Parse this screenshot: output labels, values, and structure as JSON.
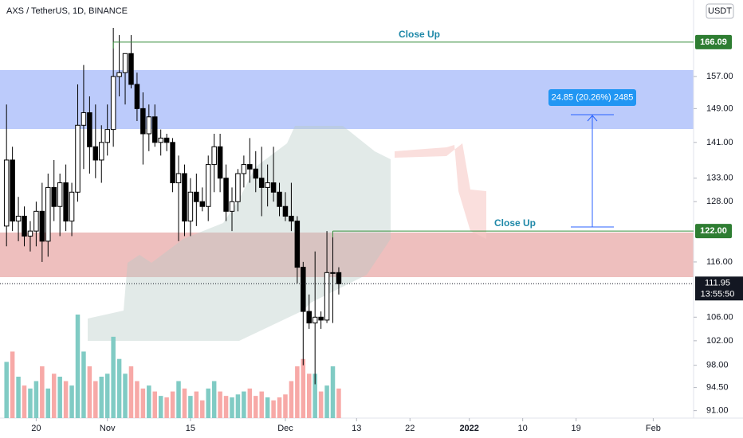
{
  "chart_data": {
    "type": "candlestick",
    "title": "AXS / TetherUS, 1D, BINANCE",
    "currency": "USDT",
    "log_scale": true,
    "ylim": [
      89.9,
      177.9
    ],
    "yticks": [
      {
        "value": 91,
        "label": "91.00"
      },
      {
        "value": 94.5,
        "label": "94.50"
      },
      {
        "value": 98,
        "label": "98.00"
      },
      {
        "value": 102,
        "label": "102.00"
      },
      {
        "value": 106,
        "label": "106.00"
      },
      {
        "value": 116,
        "label": "116.00"
      },
      {
        "value": 128,
        "label": "128.00"
      },
      {
        "value": 133,
        "label": "133.00"
      },
      {
        "value": 141,
        "label": "141.00"
      },
      {
        "value": 149,
        "label": "149.00"
      },
      {
        "value": 157,
        "label": "157.00"
      }
    ],
    "xlim": [
      -1.1,
      115.8
    ],
    "xticks": [
      {
        "value": 5,
        "label": "20"
      },
      {
        "value": 17,
        "label": "Nov"
      },
      {
        "value": 31,
        "label": "15"
      },
      {
        "value": 47,
        "label": "Dec"
      },
      {
        "value": 59,
        "label": "13"
      },
      {
        "value": 68,
        "label": "22"
      },
      {
        "value": 78,
        "label": "2022"
      },
      {
        "value": 87,
        "label": "10"
      },
      {
        "value": 96,
        "label": "19"
      },
      {
        "value": 109,
        "label": "Feb"
      }
    ],
    "up_color": "#ffffff",
    "down_color": "#000000",
    "volume_up_color": "#80cbc4",
    "volume_down_color": "#f7a9a7",
    "open": [
      123,
      137,
      124,
      125,
      121,
      122,
      126,
      120,
      131,
      127,
      132,
      124,
      130,
      145,
      148,
      140,
      137,
      141,
      144,
      157,
      158,
      163,
      155,
      149,
      143,
      147,
      141,
      142,
      141,
      132,
      134,
      124,
      130,
      128,
      127,
      136,
      140,
      133,
      126,
      128,
      134,
      136,
      135,
      133,
      131,
      132,
      130,
      127,
      125,
      124,
      115,
      107,
      105,
      106,
      105.5,
      114,
      114
    ],
    "high": [
      150,
      140,
      129,
      127,
      124,
      128,
      132,
      134,
      137,
      134,
      136,
      132,
      155,
      160,
      152,
      150,
      145,
      150,
      170,
      168,
      163,
      168,
      158,
      153,
      150,
      150,
      144,
      143,
      142,
      138,
      136,
      133,
      134,
      131,
      138,
      143,
      143,
      136,
      131,
      135,
      138,
      142,
      139,
      140,
      136,
      140,
      132,
      130,
      132,
      125,
      116,
      110,
      118,
      107,
      122,
      122,
      115
    ],
    "low": [
      119,
      122,
      120,
      119,
      118,
      119,
      116,
      117,
      124,
      121,
      122,
      121,
      128,
      135,
      134,
      133,
      132,
      138,
      140,
      152,
      150,
      154,
      146,
      136,
      139,
      140,
      138,
      139,
      130,
      120,
      121,
      121,
      123,
      126,
      124,
      130,
      130,
      124,
      122,
      126,
      131,
      132,
      130,
      125,
      127,
      128,
      125,
      124,
      122,
      112,
      98,
      104,
      95,
      104,
      105,
      105,
      110
    ],
    "close": [
      137,
      124,
      125,
      121,
      122,
      126,
      120,
      131,
      127,
      132,
      124,
      130,
      145,
      148,
      140,
      137,
      141,
      144,
      157,
      158,
      163,
      155,
      149,
      143,
      147,
      141,
      142,
      141,
      132,
      134,
      124,
      130,
      128,
      127,
      136,
      140,
      133,
      126,
      128,
      134,
      136,
      135,
      133,
      131,
      132,
      130,
      127,
      125,
      124,
      115,
      107,
      105,
      106,
      105.5,
      114,
      114,
      111.95
    ],
    "volume": [
      38,
      45,
      28,
      22,
      20,
      25,
      35,
      20,
      30,
      28,
      25,
      22,
      70,
      45,
      35,
      25,
      28,
      30,
      55,
      40,
      30,
      35,
      25,
      20,
      22,
      18,
      15,
      14,
      18,
      25,
      20,
      15,
      18,
      12,
      20,
      25,
      18,
      15,
      14,
      16,
      18,
      20,
      15,
      18,
      14,
      12,
      14,
      16,
      25,
      35,
      40,
      30,
      30,
      18,
      22,
      35,
      20
    ],
    "levels": [
      {
        "value": 166.09,
        "label": "166.09",
        "annotation": "Close Up"
      },
      {
        "value": 122,
        "label": "122.00",
        "annotation": "Close Up"
      }
    ],
    "last_price": {
      "value": 111.95,
      "label": "111.95"
    },
    "countdown": "13:55:50",
    "measure_label": "24.85 (20.26%) 2485"
  }
}
